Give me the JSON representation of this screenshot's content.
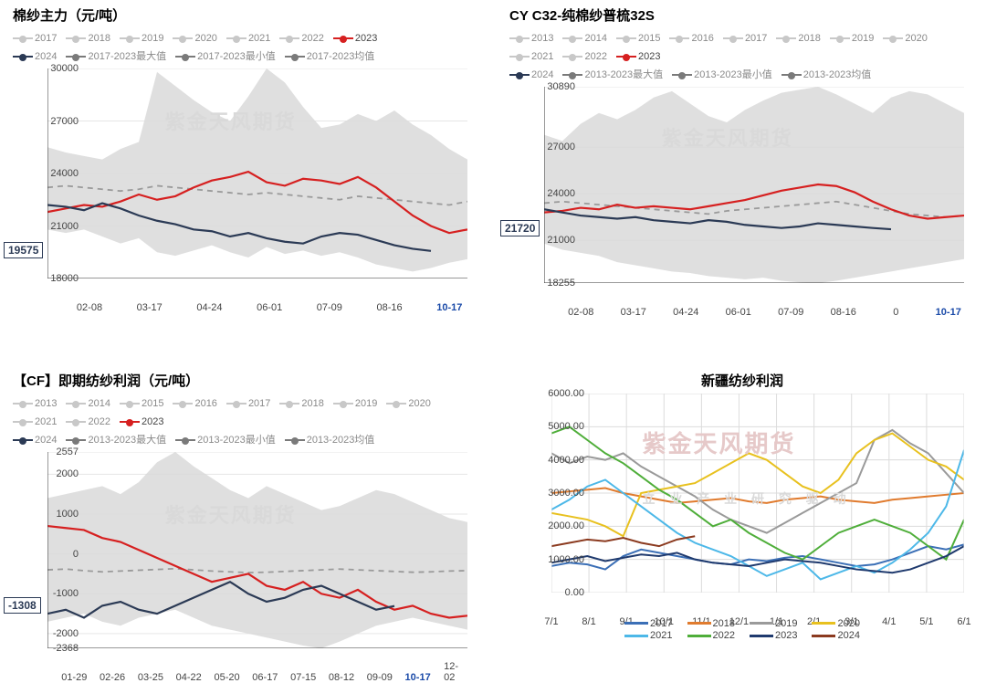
{
  "watermark": "紫金天风期货",
  "watermark2_a": "立   业   产   业   研   究   驱   动",
  "panels": {
    "tl": {
      "title": "棉纱主力（元/吨）",
      "type": "line-with-band",
      "ylim": [
        18000,
        30000
      ],
      "ytick_step": 3000,
      "xlabels": [
        "02-08",
        "03-17",
        "04-24",
        "06-01",
        "07-09",
        "08-16",
        "10-17"
      ],
      "xhighlight": "10-17",
      "legend_gray": [
        "2017",
        "2018",
        "2019",
        "2020",
        "2021",
        "2022"
      ],
      "legend_red": "2023",
      "legend_series": [
        {
          "label": "2024",
          "color": "#2b3a55"
        },
        {
          "label": "2017-2023最大值",
          "color": "#7a7a7a"
        },
        {
          "label": "2017-2023最小值",
          "color": "#7a7a7a"
        },
        {
          "label": "2017-2023均值",
          "color": "#7a7a7a"
        }
      ],
      "callout": {
        "value": "19575",
        "y": 19575,
        "color": "#2b3a55"
      },
      "colors": {
        "red": "#d62020",
        "navy": "#2b3a55",
        "band": "#d9d9d9",
        "mean": "#9a9a9a",
        "grid": "#e6e6e6",
        "axis": "#333"
      },
      "band_top": [
        25500,
        25200,
        25000,
        24800,
        25400,
        25800,
        29800,
        29000,
        28200,
        27500,
        27000,
        28400,
        30000,
        29200,
        27800,
        26600,
        26800,
        27400,
        27000,
        27600,
        26800,
        26200,
        25400,
        24800
      ],
      "band_bot": [
        20800,
        20600,
        20800,
        20400,
        20000,
        20300,
        19500,
        19300,
        19600,
        19900,
        19500,
        19200,
        19800,
        19400,
        19600,
        19300,
        19500,
        19200,
        18800,
        18600,
        18400,
        18600,
        18900,
        19100
      ],
      "mean": [
        23200,
        23300,
        23200,
        23100,
        23000,
        23100,
        23300,
        23200,
        23100,
        23000,
        22900,
        22800,
        22900,
        22800,
        22700,
        22600,
        22500,
        22700,
        22600,
        22500,
        22400,
        22300,
        22200,
        22400
      ],
      "s2023": [
        21800,
        22000,
        22200,
        22100,
        22400,
        22800,
        22500,
        22700,
        23200,
        23600,
        23800,
        24100,
        23500,
        23300,
        23700,
        23600,
        23400,
        23800,
        23200,
        22400,
        21600,
        21000,
        20600,
        20800
      ],
      "s2024": [
        22200,
        22100,
        21900,
        22300,
        22000,
        21600,
        21300,
        21100,
        20800,
        20700,
        20400,
        20600,
        20300,
        20100,
        20000,
        20400,
        20600,
        20500,
        20200,
        19900,
        19700,
        19575
      ]
    },
    "tr": {
      "title": "CY C32-纯棉纱普梳32S",
      "type": "line-with-band",
      "ylim": [
        18255,
        30890
      ],
      "yticks": [
        18255,
        21000,
        24000,
        27000,
        30890
      ],
      "xlabels": [
        "02-08",
        "03-17",
        "04-24",
        "06-01",
        "07-09",
        "08-16",
        "0",
        "10-17"
      ],
      "xhighlight": "10-17",
      "legend_gray": [
        "2013",
        "2014",
        "2015",
        "2016",
        "2017",
        "2018",
        "2019",
        "2020",
        "2021",
        "2022"
      ],
      "legend_red": "2023",
      "legend_series": [
        {
          "label": "2024",
          "color": "#2b3a55"
        },
        {
          "label": "2013-2023最大值",
          "color": "#7a7a7a"
        },
        {
          "label": "2013-2023最小值",
          "color": "#7a7a7a"
        },
        {
          "label": "2013-2023均值",
          "color": "#7a7a7a"
        }
      ],
      "callout": {
        "value": "21720",
        "y": 21720,
        "color": "#2b3a55"
      },
      "colors": {
        "red": "#d62020",
        "navy": "#2b3a55",
        "band": "#d9d9d9",
        "mean": "#9a9a9a",
        "grid": "#e6e6e6",
        "axis": "#333"
      },
      "band_top": [
        27800,
        27400,
        28500,
        29200,
        28800,
        29400,
        30200,
        30600,
        29800,
        29000,
        28600,
        29400,
        30000,
        30500,
        30700,
        30890,
        30400,
        29800,
        29200,
        30200,
        30600,
        30400,
        29800,
        29200
      ],
      "band_bot": [
        20800,
        20400,
        20200,
        20000,
        19600,
        19400,
        19200,
        19000,
        18900,
        18700,
        18600,
        18500,
        18600,
        18400,
        18300,
        18255,
        18400,
        18600,
        18800,
        19000,
        19200,
        19400,
        19600,
        19800
      ],
      "mean": [
        23400,
        23500,
        23400,
        23300,
        23200,
        23100,
        23000,
        22900,
        22800,
        22700,
        22900,
        23000,
        23100,
        23200,
        23300,
        23400,
        23500,
        23300,
        23100,
        22900,
        22700,
        22600,
        22500,
        22600
      ],
      "s2023": [
        22800,
        22900,
        23100,
        23000,
        23300,
        23100,
        23200,
        23100,
        23000,
        23200,
        23400,
        23600,
        23900,
        24200,
        24400,
        24600,
        24500,
        24100,
        23500,
        23000,
        22600,
        22400,
        22500,
        22600
      ],
      "s2024": [
        23000,
        22800,
        22600,
        22500,
        22400,
        22500,
        22300,
        22200,
        22100,
        22300,
        22200,
        22000,
        21900,
        21800,
        21900,
        22100,
        22000,
        21900,
        21800,
        21720
      ]
    },
    "bl": {
      "title": "【CF】即期纺纱利润（元/吨）",
      "type": "line-with-band",
      "ylim": [
        -2368,
        2557
      ],
      "yticks": [
        -2368,
        -2000,
        -1000,
        0,
        1000,
        2000,
        2557
      ],
      "xlabels": [
        "01-29",
        "02-26",
        "03-25",
        "04-22",
        "05-20",
        "06-17",
        "07-15",
        "08-12",
        "09-09",
        "10-17",
        "12-02"
      ],
      "xhighlight": "10-17",
      "legend_gray": [
        "2013",
        "2014",
        "2015",
        "2016",
        "2017",
        "2018",
        "2019",
        "2020",
        "2021",
        "2022"
      ],
      "legend_red": "2023",
      "legend_series": [
        {
          "label": "2024",
          "color": "#2b3a55"
        },
        {
          "label": "2013-2023最大值",
          "color": "#7a7a7a"
        },
        {
          "label": "2013-2023最小值",
          "color": "#7a7a7a"
        },
        {
          "label": "2013-2023均值",
          "color": "#7a7a7a"
        }
      ],
      "callout": {
        "value": "-1308",
        "y": -1308,
        "color": "#2b3a55"
      },
      "colors": {
        "red": "#d62020",
        "navy": "#2b3a55",
        "band": "#d9d9d9",
        "mean": "#9a9a9a",
        "grid": "#e6e6e6",
        "axis": "#333"
      },
      "band_top": [
        1400,
        1500,
        1600,
        1700,
        1500,
        1800,
        2300,
        2557,
        2200,
        1900,
        1600,
        1400,
        1700,
        1500,
        1300,
        1100,
        1200,
        1400,
        1600,
        1500,
        1300,
        1100,
        900,
        800
      ],
      "band_bot": [
        -1700,
        -1600,
        -1500,
        -1700,
        -1800,
        -1600,
        -1500,
        -1400,
        -1600,
        -1800,
        -1900,
        -2000,
        -2100,
        -2200,
        -2300,
        -2368,
        -2200,
        -2000,
        -1800,
        -1700,
        -1600,
        -1700,
        -1800,
        -1900
      ],
      "mean": [
        -400,
        -380,
        -420,
        -450,
        -430,
        -410,
        -390,
        -370,
        -400,
        -430,
        -450,
        -470,
        -460,
        -440,
        -420,
        -400,
        -380,
        -400,
        -420,
        -440,
        -460,
        -450,
        -430,
        -420
      ],
      "s2023": [
        700,
        650,
        600,
        400,
        300,
        100,
        -100,
        -300,
        -500,
        -700,
        -600,
        -500,
        -800,
        -900,
        -700,
        -1000,
        -1100,
        -900,
        -1200,
        -1400,
        -1300,
        -1500,
        -1600,
        -1550
      ],
      "s2024": [
        -1500,
        -1400,
        -1600,
        -1300,
        -1200,
        -1400,
        -1500,
        -1300,
        -1100,
        -900,
        -700,
        -1000,
        -1200,
        -1100,
        -900,
        -800,
        -1000,
        -1200,
        -1400,
        -1308
      ]
    },
    "br": {
      "title": "新疆纺纱利润",
      "type": "multiline",
      "ylim": [
        0,
        6000
      ],
      "ytick_step": 1000,
      "ylabel_fmt": ".00",
      "xlabels": [
        "7/1",
        "8/1",
        "9/1",
        "10/1",
        "11/1",
        "12/1",
        "1/1",
        "2/1",
        "3/1",
        "4/1",
        "5/1",
        "6/1"
      ],
      "colors": {
        "grid": "#dcdcdc",
        "axis": "#666"
      },
      "series": [
        {
          "label": "2017",
          "color": "#3b6fb6",
          "data": [
            800,
            900,
            850,
            700,
            1100,
            1300,
            1200,
            1100,
            1000,
            900,
            850,
            1000,
            950,
            1050,
            1100,
            1000,
            900,
            800,
            850,
            1000,
            1200,
            1400,
            1300,
            1450
          ]
        },
        {
          "label": "2018",
          "color": "#e07b2e",
          "data": [
            3000,
            3050,
            3100,
            3150,
            3000,
            2900,
            2800,
            2700,
            2750,
            2800,
            2850,
            2750,
            2700,
            2800,
            2850,
            2900,
            2800,
            2750,
            2700,
            2800,
            2850,
            2900,
            2950,
            3000
          ]
        },
        {
          "label": "2019",
          "color": "#9a9a9a",
          "data": [
            4200,
            3900,
            4100,
            4000,
            4200,
            3800,
            3500,
            3200,
            2900,
            2500,
            2200,
            2000,
            1800,
            2100,
            2400,
            2700,
            3000,
            3300,
            4600,
            4900,
            4500,
            4200,
            3600,
            3000
          ]
        },
        {
          "label": "2020",
          "color": "#e8c11f",
          "data": [
            2400,
            2300,
            2200,
            2000,
            1700,
            3000,
            3100,
            3200,
            3300,
            3600,
            3900,
            4200,
            4000,
            3600,
            3200,
            3000,
            3400,
            4200,
            4600,
            4800,
            4400,
            4000,
            3800,
            3400
          ]
        },
        {
          "label": "2021",
          "color": "#4db8e8",
          "data": [
            2500,
            2800,
            3200,
            3400,
            3000,
            2600,
            2200,
            1800,
            1500,
            1300,
            1100,
            800,
            500,
            700,
            900,
            400,
            600,
            800,
            600,
            900,
            1300,
            1800,
            2600,
            4300
          ]
        },
        {
          "label": "2022",
          "color": "#4fae3a",
          "data": [
            4800,
            5000,
            4600,
            4200,
            3900,
            3500,
            3100,
            2800,
            2400,
            2000,
            2200,
            1800,
            1500,
            1200,
            1000,
            1400,
            1800,
            2000,
            2200,
            2000,
            1800,
            1400,
            1000,
            2200
          ]
        },
        {
          "label": "2023",
          "color": "#1f3a6e",
          "data": [
            900,
            1000,
            1100,
            950,
            1050,
            1150,
            1100,
            1200,
            1000,
            900,
            850,
            800,
            900,
            1000,
            950,
            900,
            800,
            700,
            650,
            600,
            700,
            900,
            1100,
            1400
          ]
        },
        {
          "label": "2024",
          "color": "#8b3a1f",
          "data": [
            1400,
            1500,
            1600,
            1550,
            1650,
            1500,
            1400,
            1600,
            1700
          ]
        }
      ]
    }
  }
}
